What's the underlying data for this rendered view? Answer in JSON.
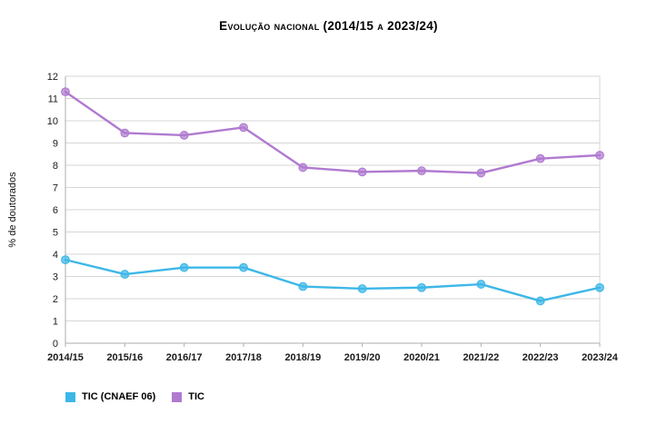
{
  "title": "Evolução nacional (2014/15 a 2023/24)",
  "colors": {
    "series_tic_cnaef06": "#3db7e7",
    "series_tic": "#b07ad0",
    "gridline": "#d6d6d6",
    "axis": "#aeaeae",
    "tick_text": "#1a1a1a"
  },
  "legend": {
    "items": [
      {
        "label": "TIC (CNAEF 06)",
        "color": "#3db7e7"
      },
      {
        "label": "TIC",
        "color": "#b07ad0"
      }
    ]
  },
  "chart_data": {
    "type": "line",
    "title": "Evolução nacional (2014/15 a 2023/24)",
    "xlabel": "",
    "ylabel": "% de doutorados",
    "ylim": [
      0,
      12
    ],
    "ytick_step": 1,
    "grid": true,
    "legend_position": "bottom-left",
    "categories": [
      "2014/15",
      "2015/16",
      "2016/17",
      "2017/18",
      "2018/19",
      "2019/20",
      "2020/21",
      "2021/22",
      "2022/23",
      "2023/24"
    ],
    "series": [
      {
        "name": "TIC (CNAEF 06)",
        "color": "#3db7e7",
        "values": [
          3.75,
          3.1,
          3.4,
          3.4,
          2.55,
          2.45,
          2.5,
          2.65,
          1.9,
          2.5
        ]
      },
      {
        "name": "TIC",
        "color": "#b07ad0",
        "values": [
          11.3,
          9.45,
          9.35,
          9.7,
          7.9,
          7.7,
          7.75,
          7.65,
          8.3,
          8.45
        ]
      }
    ]
  }
}
